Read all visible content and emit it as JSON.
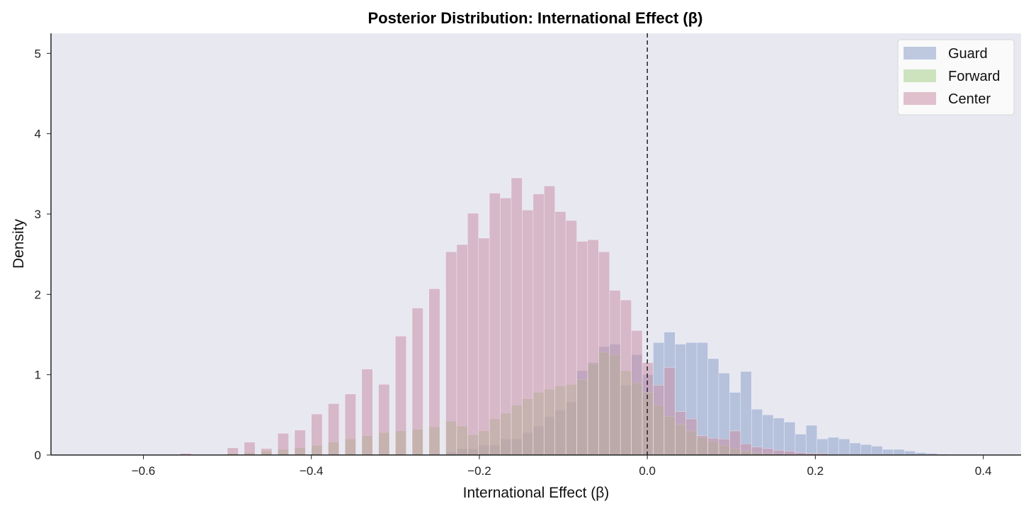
{
  "chart_data": {
    "type": "bar",
    "title": "Posterior Distribution: International Effect (β)",
    "xlabel": "International Effect (β)",
    "ylabel": "Density",
    "xlim": [
      -0.71,
      0.445
    ],
    "ylim": [
      0,
      5.25
    ],
    "xticks": [
      -0.6,
      -0.4,
      -0.2,
      0.0,
      0.2,
      0.4
    ],
    "xtick_labels": [
      "−0.6",
      "−0.4",
      "−0.2",
      "0.0",
      "0.2",
      "0.4"
    ],
    "yticks": [
      0,
      1,
      2,
      3,
      4,
      5
    ],
    "ytick_labels": [
      "0",
      "1",
      "2",
      "3",
      "4",
      "5"
    ],
    "vline_x": 0.0,
    "legend_position": "upper right",
    "plot_background": "#e8e8f1",
    "series": [
      {
        "name": "Guard",
        "color": "#8da0cb",
        "bins": [
          [
            -0.24,
            0.04
          ],
          [
            -0.227,
            0.08
          ],
          [
            -0.214,
            0.08
          ],
          [
            -0.201,
            0.12
          ],
          [
            -0.188,
            0.12
          ],
          [
            -0.175,
            0.2
          ],
          [
            -0.162,
            0.2
          ],
          [
            -0.149,
            0.28
          ],
          [
            -0.136,
            0.36
          ],
          [
            -0.123,
            0.48
          ],
          [
            -0.11,
            0.56
          ],
          [
            -0.097,
            0.66
          ],
          [
            -0.084,
            1.05
          ],
          [
            -0.071,
            1.15
          ],
          [
            -0.058,
            1.35
          ],
          [
            -0.045,
            1.38
          ],
          [
            -0.032,
            0.87
          ],
          [
            -0.019,
            1.25
          ],
          [
            -0.006,
            1.0
          ],
          [
            0.007,
            1.4
          ],
          [
            0.02,
            1.53
          ],
          [
            0.033,
            1.38
          ],
          [
            0.046,
            1.4
          ],
          [
            0.059,
            1.4
          ],
          [
            0.072,
            1.2
          ],
          [
            0.085,
            1.02
          ],
          [
            0.098,
            0.78
          ],
          [
            0.111,
            1.04
          ],
          [
            0.124,
            0.57
          ],
          [
            0.137,
            0.5
          ],
          [
            0.15,
            0.46
          ],
          [
            0.163,
            0.41
          ],
          [
            0.176,
            0.26
          ],
          [
            0.189,
            0.37
          ],
          [
            0.202,
            0.2
          ],
          [
            0.215,
            0.22
          ],
          [
            0.228,
            0.2
          ],
          [
            0.241,
            0.15
          ],
          [
            0.254,
            0.13
          ],
          [
            0.267,
            0.11
          ],
          [
            0.28,
            0.07
          ],
          [
            0.293,
            0.07
          ],
          [
            0.306,
            0.05
          ],
          [
            0.319,
            0.03
          ],
          [
            0.332,
            0.02
          ],
          [
            0.345,
            0.01
          ]
        ]
      },
      {
        "name": "Forward",
        "color": "#a6d08c",
        "bins": [
          [
            -0.5,
            0.02
          ],
          [
            -0.48,
            0.03
          ],
          [
            -0.46,
            0.05
          ],
          [
            -0.44,
            0.07
          ],
          [
            -0.42,
            0.09
          ],
          [
            -0.4,
            0.12
          ],
          [
            -0.38,
            0.16
          ],
          [
            -0.36,
            0.2
          ],
          [
            -0.34,
            0.24
          ],
          [
            -0.32,
            0.28
          ],
          [
            -0.3,
            0.3
          ],
          [
            -0.28,
            0.32
          ],
          [
            -0.26,
            0.35
          ],
          [
            -0.24,
            0.42
          ],
          [
            -0.227,
            0.36
          ],
          [
            -0.214,
            0.25
          ],
          [
            -0.201,
            0.3
          ],
          [
            -0.188,
            0.45
          ],
          [
            -0.175,
            0.52
          ],
          [
            -0.162,
            0.62
          ],
          [
            -0.149,
            0.7
          ],
          [
            -0.136,
            0.78
          ],
          [
            -0.123,
            0.82
          ],
          [
            -0.11,
            0.86
          ],
          [
            -0.097,
            0.88
          ],
          [
            -0.084,
            0.94
          ],
          [
            -0.071,
            1.13
          ],
          [
            -0.058,
            1.28
          ],
          [
            -0.045,
            1.25
          ],
          [
            -0.032,
            1.05
          ],
          [
            -0.019,
            0.9
          ],
          [
            -0.006,
            0.78
          ],
          [
            0.007,
            0.62
          ],
          [
            0.02,
            0.48
          ],
          [
            0.033,
            0.38
          ],
          [
            0.046,
            0.3
          ],
          [
            0.059,
            0.22
          ],
          [
            0.072,
            0.17
          ],
          [
            0.085,
            0.12
          ],
          [
            0.098,
            0.08
          ],
          [
            0.111,
            0.05
          ],
          [
            0.124,
            0.03
          ],
          [
            0.137,
            0.02
          ]
        ]
      },
      {
        "name": "Center",
        "color": "#c98fa6",
        "bins": [
          [
            -0.556,
            0.02
          ],
          [
            -0.5,
            0.09
          ],
          [
            -0.48,
            0.16
          ],
          [
            -0.46,
            0.08
          ],
          [
            -0.44,
            0.27
          ],
          [
            -0.42,
            0.31
          ],
          [
            -0.4,
            0.51
          ],
          [
            -0.38,
            0.64
          ],
          [
            -0.36,
            0.76
          ],
          [
            -0.34,
            1.07
          ],
          [
            -0.32,
            0.88
          ],
          [
            -0.3,
            1.48
          ],
          [
            -0.28,
            1.83
          ],
          [
            -0.26,
            2.07
          ],
          [
            -0.24,
            2.53
          ],
          [
            -0.227,
            2.62
          ],
          [
            -0.214,
            3.01
          ],
          [
            -0.201,
            2.7
          ],
          [
            -0.188,
            3.26
          ],
          [
            -0.175,
            3.2
          ],
          [
            -0.162,
            3.45
          ],
          [
            -0.149,
            3.05
          ],
          [
            -0.136,
            3.25
          ],
          [
            -0.123,
            3.35
          ],
          [
            -0.11,
            3.03
          ],
          [
            -0.097,
            2.92
          ],
          [
            -0.084,
            2.66
          ],
          [
            -0.071,
            2.68
          ],
          [
            -0.058,
            2.53
          ],
          [
            -0.045,
            2.05
          ],
          [
            -0.032,
            1.93
          ],
          [
            -0.019,
            1.55
          ],
          [
            -0.006,
            1.15
          ],
          [
            0.007,
            0.87
          ],
          [
            0.02,
            1.09
          ],
          [
            0.033,
            0.54
          ],
          [
            0.046,
            0.45
          ],
          [
            0.059,
            0.24
          ],
          [
            0.072,
            0.21
          ],
          [
            0.085,
            0.2
          ],
          [
            0.098,
            0.3
          ],
          [
            0.111,
            0.14
          ],
          [
            0.124,
            0.1
          ],
          [
            0.137,
            0.08
          ],
          [
            0.15,
            0.06
          ],
          [
            0.163,
            0.05
          ],
          [
            0.176,
            0.03
          ],
          [
            0.189,
            0.02
          ],
          [
            0.202,
            0.02
          ]
        ]
      }
    ]
  }
}
